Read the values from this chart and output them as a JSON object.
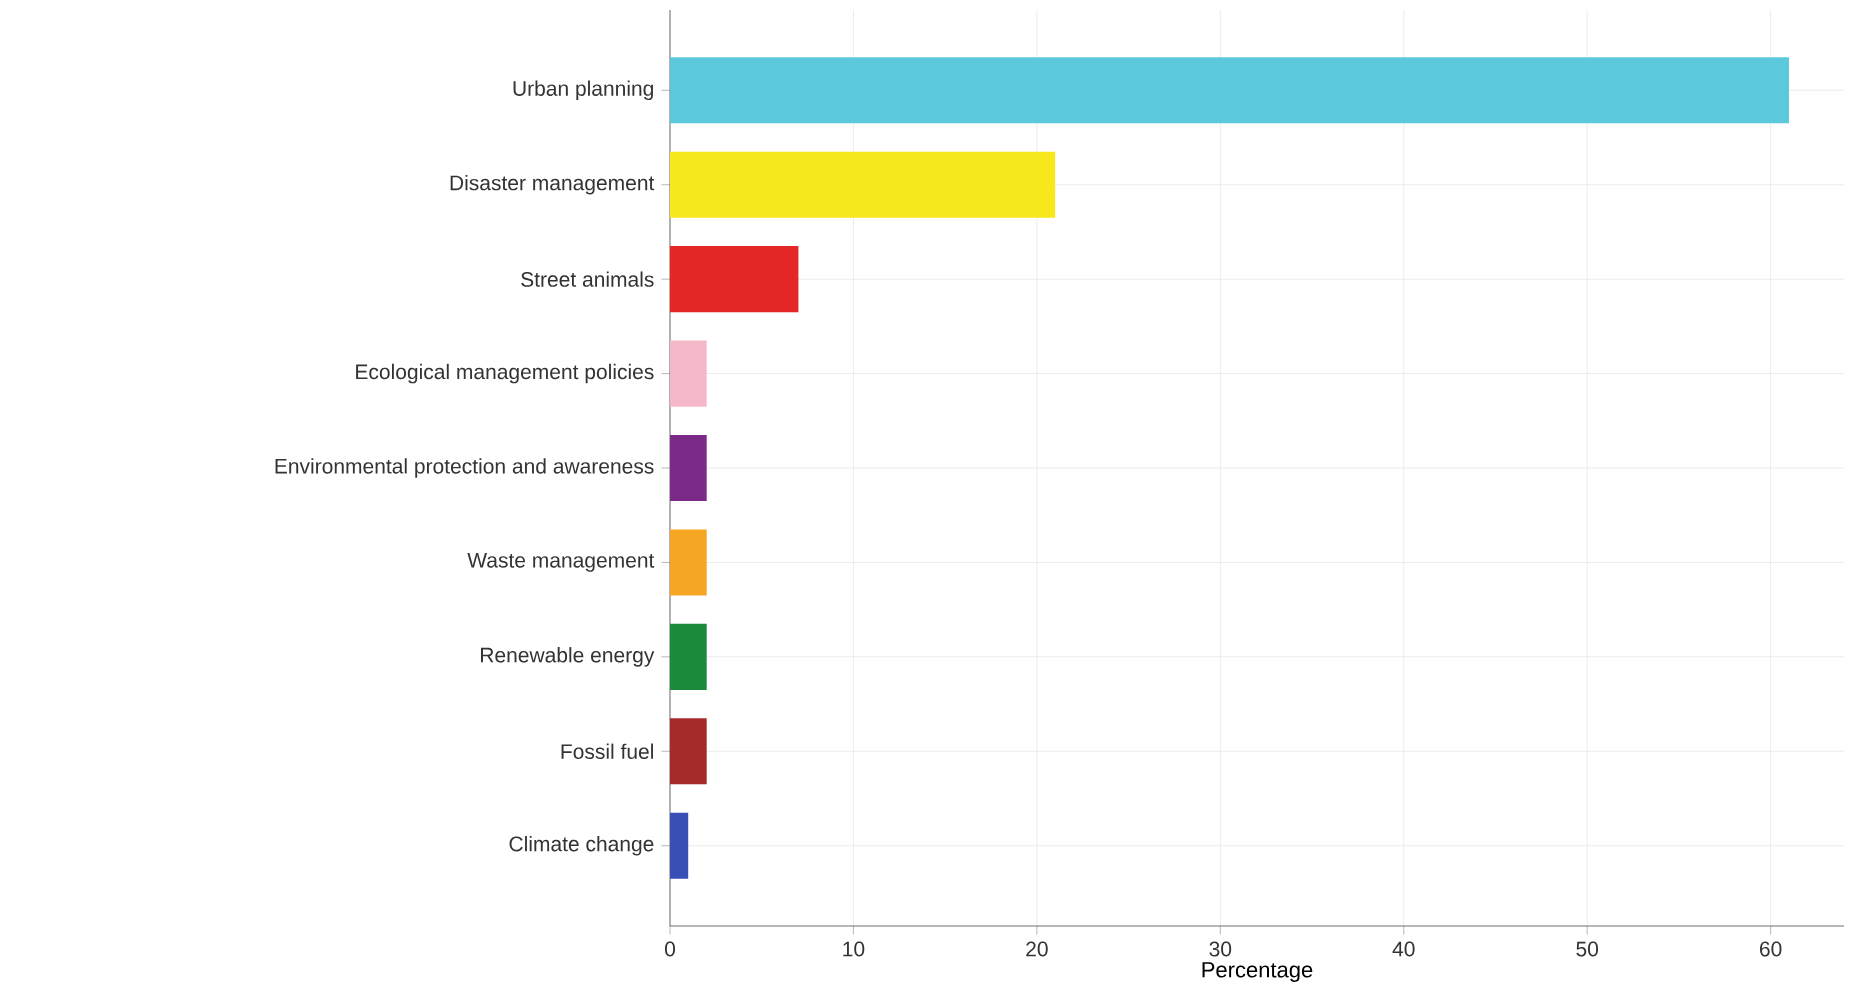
{
  "chart_data": {
    "type": "bar",
    "orientation": "horizontal",
    "xlabel": "Percentage",
    "categories": [
      "Urban planning",
      "Disaster management",
      "Street animals",
      "Ecological management policies",
      "Environmental protection and awareness",
      "Waste management",
      "Renewable energy",
      "Fossil fuel",
      "Climate change"
    ],
    "values": [
      61,
      21,
      7,
      2,
      2,
      2,
      2,
      2,
      1
    ],
    "colors": [
      "#5bc8dc",
      "#f7e81e",
      "#e32626",
      "#f4b8c8",
      "#7b2a8a",
      "#f5a623",
      "#1b8a3c",
      "#a52a2a",
      "#3a4fb5"
    ],
    "xlim": [
      0,
      64
    ],
    "xticks": [
      0,
      10,
      20,
      30,
      40,
      50,
      60
    ],
    "grid": true
  }
}
